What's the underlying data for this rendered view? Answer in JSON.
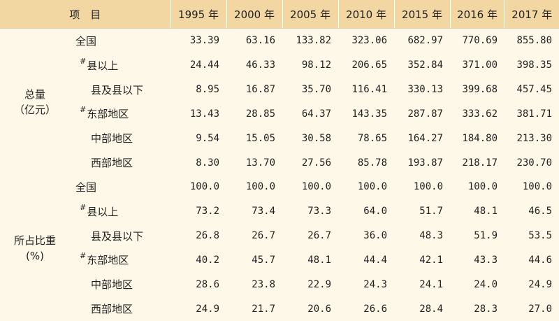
{
  "header": {
    "item": "项　目",
    "years": [
      "1995 年",
      "2000 年",
      "2005 年",
      "2010 年",
      "2015 年",
      "2016 年",
      "2017 年"
    ]
  },
  "sections": [
    {
      "group_label_line1": "总量",
      "group_label_line2": "（亿元）",
      "rows": [
        {
          "mark": "",
          "label": "全国",
          "indent": 0,
          "values": [
            "33.39",
            "63.16",
            "133.82",
            "323.06",
            "682.97",
            "770.69",
            "855.80"
          ]
        },
        {
          "mark": "#",
          "label": "县以上",
          "indent": 1,
          "values": [
            "24.44",
            "46.33",
            "98.12",
            "206.65",
            "352.84",
            "371.00",
            "398.35"
          ]
        },
        {
          "mark": "",
          "label": "县及县以下",
          "indent": 2,
          "values": [
            "8.95",
            "16.87",
            "35.70",
            "116.41",
            "330.13",
            "399.68",
            "457.45"
          ]
        },
        {
          "mark": "#",
          "label": "东部地区",
          "indent": 1,
          "values": [
            "13.43",
            "28.85",
            "64.37",
            "143.35",
            "287.87",
            "333.62",
            "381.71"
          ]
        },
        {
          "mark": "",
          "label": "中部地区",
          "indent": 2,
          "values": [
            "9.54",
            "15.05",
            "30.58",
            "78.65",
            "164.27",
            "184.80",
            "213.30"
          ]
        },
        {
          "mark": "",
          "label": "西部地区",
          "indent": 2,
          "values": [
            "8.30",
            "13.70",
            "27.56",
            "85.78",
            "193.87",
            "218.17",
            "230.70"
          ]
        }
      ]
    },
    {
      "group_label_line1": "所占比重",
      "group_label_line2": "(%)",
      "rows": [
        {
          "mark": "",
          "label": "全国",
          "indent": 0,
          "values": [
            "100.0",
            "100.0",
            "100.0",
            "100.0",
            "100.0",
            "100.0",
            "100.0"
          ]
        },
        {
          "mark": "#",
          "label": "县以上",
          "indent": 1,
          "values": [
            "73.2",
            "73.4",
            "73.3",
            "64.0",
            "51.7",
            "48.1",
            "46.5"
          ]
        },
        {
          "mark": "",
          "label": "县及县以下",
          "indent": 2,
          "values": [
            "26.8",
            "26.7",
            "26.7",
            "36.0",
            "48.3",
            "51.9",
            "53.5"
          ]
        },
        {
          "mark": "#",
          "label": "东部地区",
          "indent": 1,
          "values": [
            "40.2",
            "45.7",
            "48.1",
            "44.4",
            "42.1",
            "43.3",
            "44.6"
          ]
        },
        {
          "mark": "",
          "label": "中部地区",
          "indent": 2,
          "values": [
            "28.6",
            "23.8",
            "22.9",
            "24.3",
            "24.1",
            "24.0",
            "24.9"
          ]
        },
        {
          "mark": "",
          "label": "西部地区",
          "indent": 2,
          "values": [
            "24.9",
            "21.7",
            "20.6",
            "26.6",
            "28.4",
            "28.3",
            "27.0"
          ]
        }
      ]
    }
  ],
  "colors": {
    "header_bg": "#f3d7a2",
    "body_bg": "#fdf8e7"
  }
}
